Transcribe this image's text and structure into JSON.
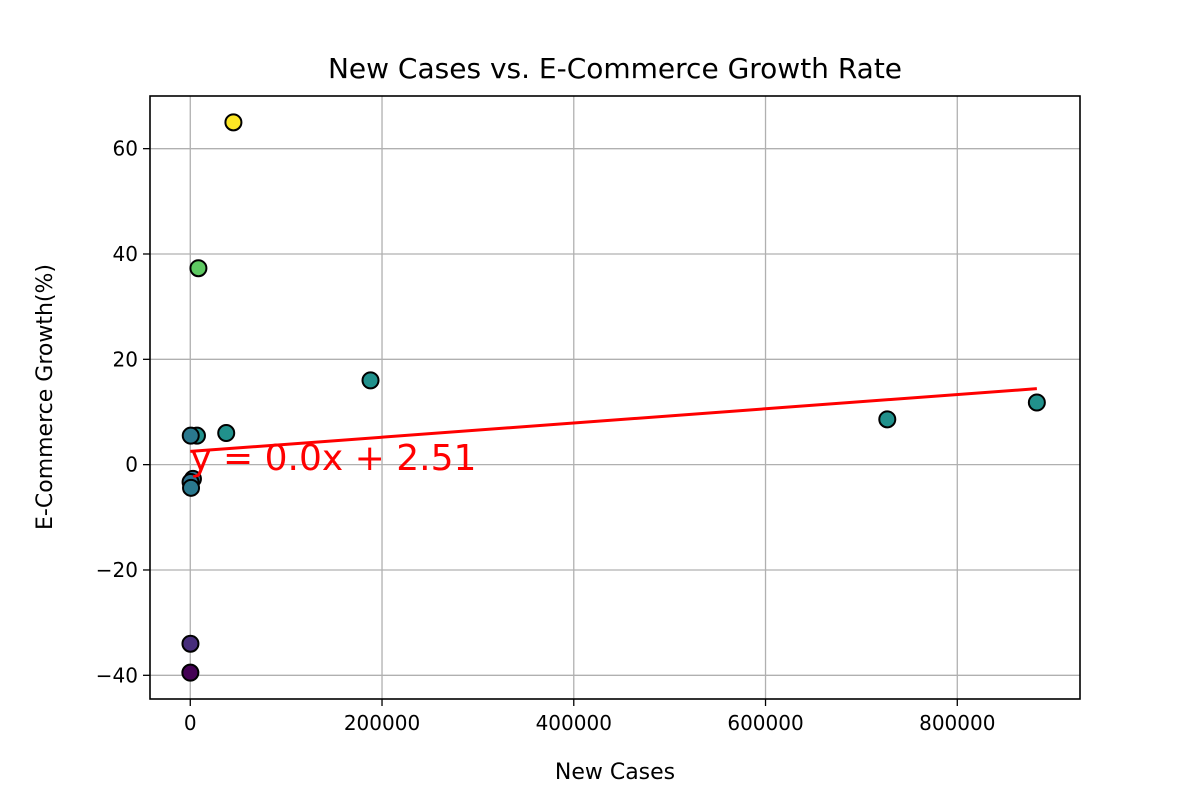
{
  "chart_data": {
    "type": "scatter",
    "title": "New Cases vs. E-Commerce Growth Rate",
    "xlabel": "New Cases",
    "ylabel": "E-Commerce Growth(%)",
    "xlim": [
      -42000,
      928000
    ],
    "ylim": [
      -44.5,
      70
    ],
    "xticks": [
      0,
      200000,
      400000,
      600000,
      800000
    ],
    "xtick_labels": [
      "0",
      "200000",
      "400000",
      "600000",
      "800000"
    ],
    "yticks": [
      -40,
      -20,
      0,
      20,
      40,
      60
    ],
    "ytick_labels": [
      "−40",
      "−20",
      "0",
      "20",
      "40",
      "60"
    ],
    "grid": true,
    "points": [
      {
        "x": 45000,
        "y": 65.0,
        "color": "#fde725"
      },
      {
        "x": 8500,
        "y": 37.3,
        "color": "#5ec962"
      },
      {
        "x": 188000,
        "y": 16.0,
        "color": "#21918c"
      },
      {
        "x": 883000,
        "y": 11.8,
        "color": "#21918c"
      },
      {
        "x": 727000,
        "y": 8.6,
        "color": "#21918c"
      },
      {
        "x": 37500,
        "y": 6.0,
        "color": "#21918c"
      },
      {
        "x": 7000,
        "y": 5.5,
        "color": "#21918c"
      },
      {
        "x": 500,
        "y": 5.5,
        "color": "#2a788e"
      },
      {
        "x": 2800,
        "y": -2.7,
        "color": "#2b748e"
      },
      {
        "x": 300,
        "y": -3.3,
        "color": "#2c718e"
      },
      {
        "x": 800,
        "y": -4.4,
        "color": "#2a788e"
      },
      {
        "x": 200,
        "y": -34.0,
        "color": "#472d7b"
      },
      {
        "x": 100,
        "y": -39.5,
        "color": "#440154"
      }
    ],
    "regression": {
      "slope": 1.35e-05,
      "intercept": 2.51,
      "x_range": [
        0,
        883000
      ],
      "color": "#ff0000",
      "label": "y = 0.0x + 2.51",
      "label_anchor": {
        "x": 0,
        "y": -1.0
      }
    }
  }
}
